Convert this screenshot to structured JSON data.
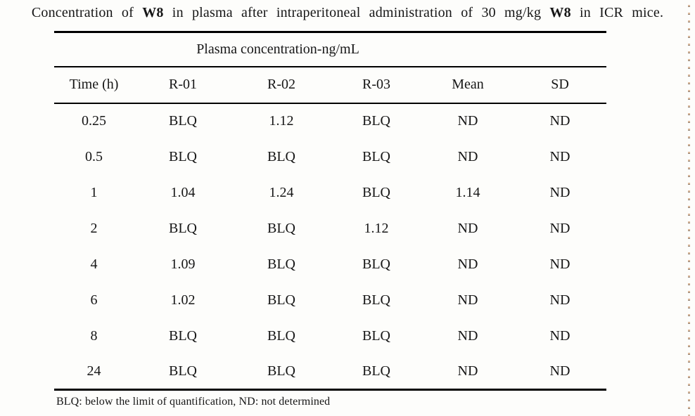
{
  "colors": {
    "ink": "#161616",
    "rule": "#000000",
    "paper": "#fdfdfb",
    "dot-tan": "#cda07a",
    "dot-dark": "#6f5a49"
  },
  "caption": {
    "parts": [
      "Concentration of ",
      "W8",
      " in plasma after intraperitoneal administration of 30 mg/kg ",
      "W8",
      " in ICR mice."
    ]
  },
  "table": {
    "group_header": "Plasma concentration-ng/mL",
    "columns": [
      "Time (h)",
      "R-01",
      "R-02",
      "R-03",
      "Mean",
      "SD"
    ],
    "rows": [
      [
        "0.25",
        "BLQ",
        "1.12",
        "BLQ",
        "ND",
        "ND"
      ],
      [
        "0.5",
        "BLQ",
        "BLQ",
        "BLQ",
        "ND",
        "ND"
      ],
      [
        "1",
        "1.04",
        "1.24",
        "BLQ",
        "1.14",
        "ND"
      ],
      [
        "2",
        "BLQ",
        "BLQ",
        "1.12",
        "ND",
        "ND"
      ],
      [
        "4",
        "1.09",
        "BLQ",
        "BLQ",
        "ND",
        "ND"
      ],
      [
        "6",
        "1.02",
        "BLQ",
        "BLQ",
        "ND",
        "ND"
      ],
      [
        "8",
        "BLQ",
        "BLQ",
        "BLQ",
        "ND",
        "ND"
      ],
      [
        "24",
        "BLQ",
        "BLQ",
        "BLQ",
        "ND",
        "ND"
      ]
    ]
  },
  "footnote": "BLQ: below the limit of quantification, ND: not determined"
}
